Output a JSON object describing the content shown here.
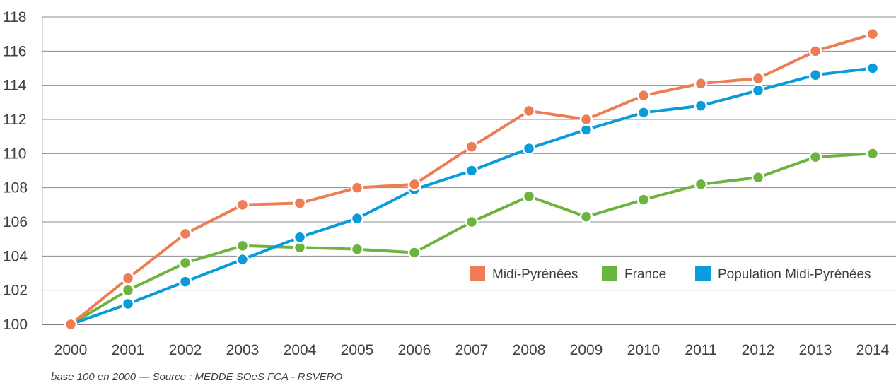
{
  "chart_data": {
    "type": "line",
    "x": [
      2000,
      2001,
      2002,
      2003,
      2004,
      2005,
      2006,
      2007,
      2008,
      2009,
      2010,
      2011,
      2012,
      2013,
      2014
    ],
    "xlabels": [
      "2000",
      "2001",
      "2002",
      "2003",
      "2004",
      "2005",
      "2006",
      "2007",
      "2008",
      "2009",
      "2010",
      "2011",
      "2012",
      "2013",
      "2014"
    ],
    "ylim": [
      100,
      118
    ],
    "yticks": [
      100,
      102,
      104,
      106,
      108,
      110,
      112,
      114,
      116,
      118
    ],
    "ytick_labels": [
      "100",
      "102",
      "104",
      "106",
      "108",
      "110",
      "112",
      "114",
      "116",
      "118"
    ],
    "grid": true,
    "legend_position": "lower-right",
    "series": [
      {
        "name": "Midi-Pyrénées",
        "color": "#ED7D54",
        "values": [
          100,
          102.7,
          105.3,
          107.0,
          107.1,
          108.0,
          108.2,
          110.4,
          112.5,
          112.0,
          113.4,
          114.1,
          114.4,
          116.0,
          117.0
        ]
      },
      {
        "name": "France",
        "color": "#6DB33F",
        "values": [
          100,
          102.0,
          103.6,
          104.6,
          104.5,
          104.4,
          104.2,
          106.0,
          107.5,
          106.3,
          107.3,
          108.2,
          108.6,
          109.8,
          110.0
        ]
      },
      {
        "name": "Population Midi-Pyrénées",
        "color": "#0A9BDB",
        "values": [
          100,
          101.2,
          102.5,
          103.8,
          105.1,
          106.2,
          107.9,
          109.0,
          110.3,
          111.4,
          112.4,
          112.8,
          113.7,
          114.6,
          115.0
        ]
      }
    ],
    "note": "base 100 en 2000 — Source : MEDDE SOeS FCA - RSVERO"
  }
}
